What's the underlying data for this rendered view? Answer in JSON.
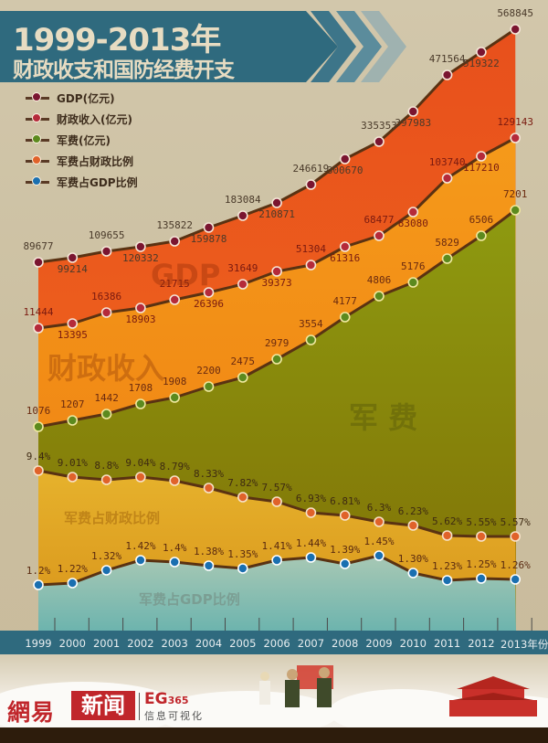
{
  "header": {
    "title_line1": "1999-2013年",
    "title_line2": "财政收支和国防经费开支"
  },
  "legend": [
    {
      "label": "GDP(亿元)",
      "color": "#7a1530"
    },
    {
      "label": "财政收入(亿元)",
      "color": "#b52a3a"
    },
    {
      "label": "军费(亿元)",
      "color": "#5c8a1e"
    },
    {
      "label": "军费占财政比例",
      "color": "#e0622a"
    },
    {
      "label": "军费占GDP比例",
      "color": "#1a6fb0"
    }
  ],
  "watermarks": {
    "gdp": "GDP",
    "revenue": "财政收入",
    "military": "军 费",
    "mil_rev_ratio": "军费占财政比例",
    "mil_gdp_ratio": "军费占GDP比例"
  },
  "axis": {
    "years": [
      "1999",
      "2000",
      "2001",
      "2002",
      "2003",
      "2004",
      "2005",
      "2006",
      "2007",
      "2008",
      "2009",
      "2010",
      "2011",
      "2012",
      "2013年份"
    ]
  },
  "footer": {
    "brand_left": "網易",
    "brand_box": "新闻",
    "brand_eg": "EG",
    "brand_eg_num": "365",
    "brand_sub": "信息可视化"
  },
  "chart_data": {
    "type": "area",
    "title": "1999-2013年 财政收支和国防经费开支",
    "xlabel": "年份",
    "ylabel": "",
    "categories": [
      "1999",
      "2000",
      "2001",
      "2002",
      "2003",
      "2004",
      "2005",
      "2006",
      "2007",
      "2008",
      "2009",
      "2010",
      "2011",
      "2012",
      "2013"
    ],
    "series": [
      {
        "name": "GDP(亿元)",
        "values": [
          89677,
          99214,
          109655,
          120332,
          135822,
          159878,
          183084,
          210871,
          246619,
          300670,
          335353,
          397983,
          471564,
          519322,
          568845
        ]
      },
      {
        "name": "财政收入(亿元)",
        "values": [
          11444,
          13395,
          16386,
          18903,
          21715,
          26396,
          31649,
          39373,
          51304,
          61316,
          68477,
          83080,
          103740,
          117210,
          129143
        ]
      },
      {
        "name": "军费(亿元)",
        "values": [
          1076,
          1207,
          1442,
          1708,
          1908,
          2200,
          2475,
          2979,
          3554,
          4177,
          4806,
          5176,
          5829,
          6506,
          7201
        ]
      },
      {
        "name": "军费占财政比例",
        "values": [
          "9.4%",
          "9.01%",
          "8.8%",
          "9.04%",
          "8.79%",
          "8.33%",
          "7.82%",
          "7.57%",
          "6.93%",
          "6.81%",
          "6.3%",
          "6.23%",
          "5.62%",
          "5.55%",
          "5.57%"
        ]
      },
      {
        "name": "军费占GDP比例",
        "values": [
          "1.2%",
          "1.22%",
          "1.32%",
          "1.42%",
          "1.4%",
          "1.38%",
          "1.35%",
          "1.41%",
          "1.44%",
          "1.39%",
          "1.45%",
          "1.30%",
          "1.23%",
          "1.25%",
          "1.26%"
        ]
      }
    ],
    "grid": false,
    "legend_position": "top-left"
  }
}
